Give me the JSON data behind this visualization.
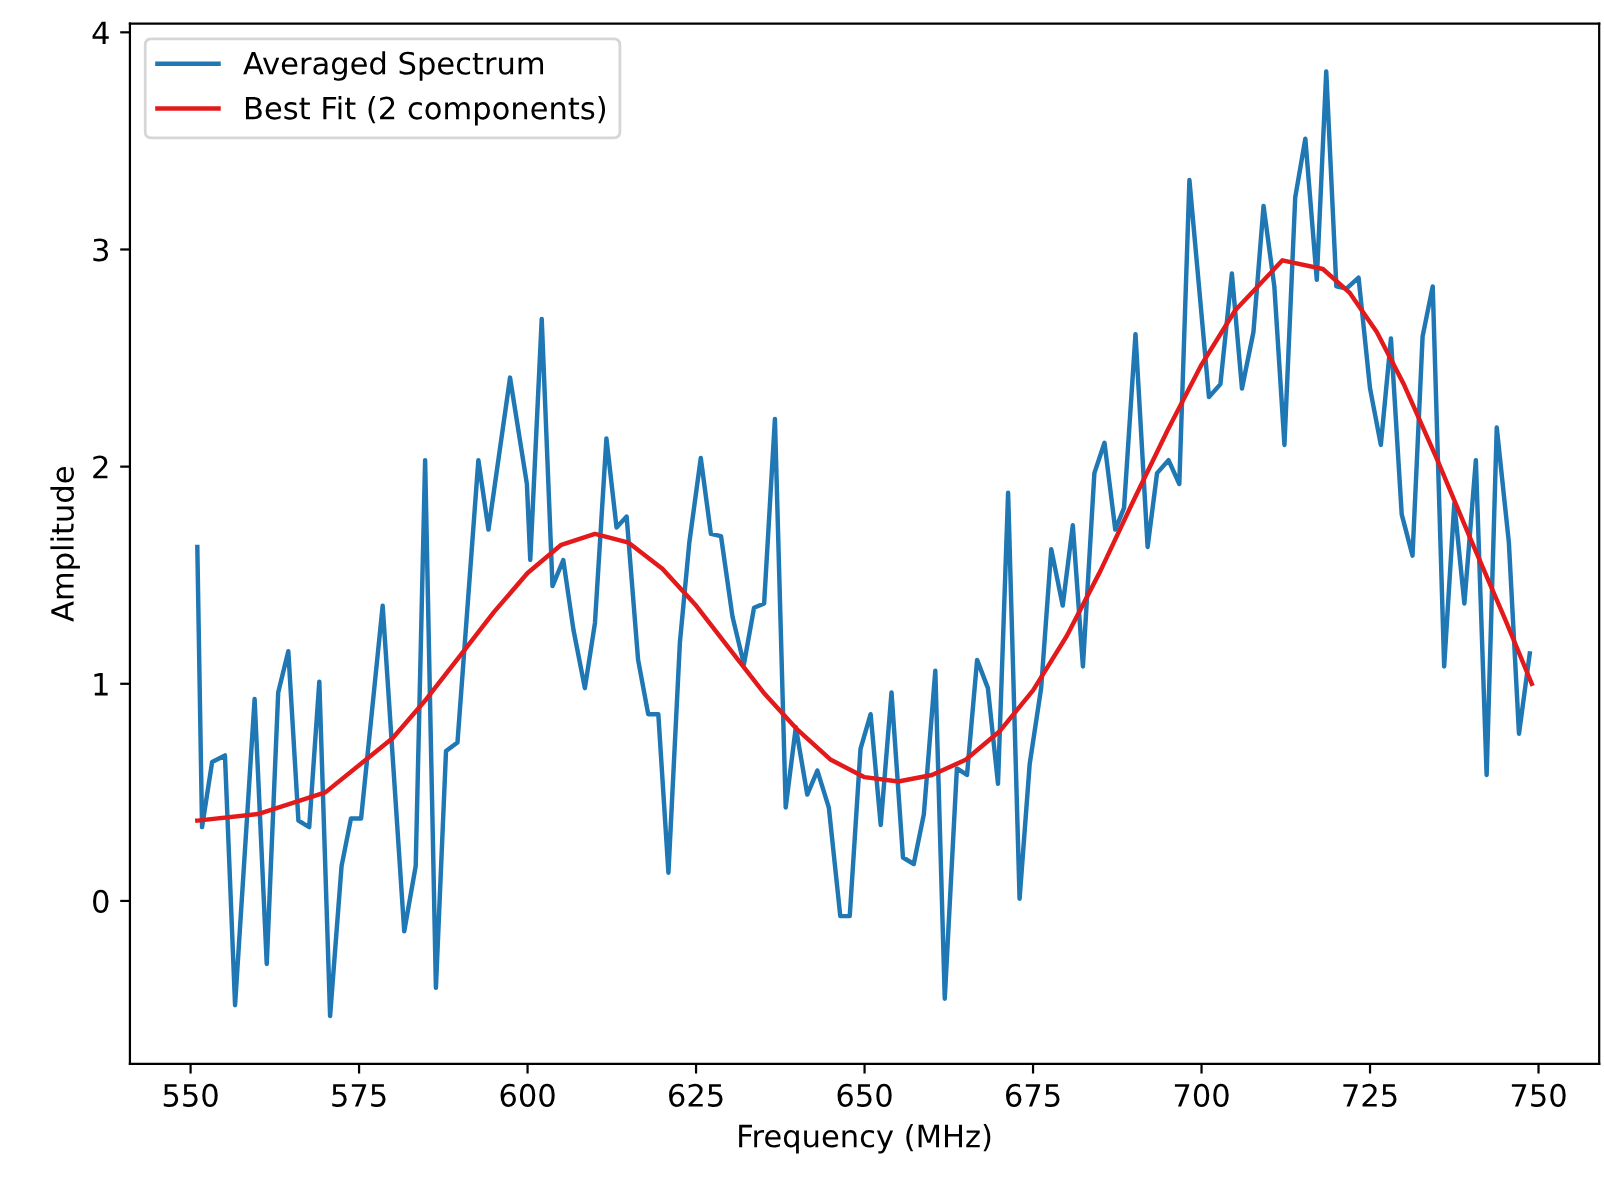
{
  "chart_data": {
    "type": "line",
    "xlabel": "Frequency (MHz)",
    "ylabel": "Amplitude",
    "xlim": [
      541,
      759
    ],
    "ylim": [
      -0.75,
      4.04
    ],
    "xticks": [
      550,
      575,
      600,
      625,
      650,
      675,
      700,
      725,
      750
    ],
    "yticks": [
      0,
      1,
      2,
      3,
      4
    ],
    "grid": false,
    "legend": "top left",
    "marker": "none",
    "line_style": "solid",
    "series": [
      {
        "name": "Averaged Spectrum",
        "color": "#1f77b4",
        "x": [
          551,
          551.7,
          553.2,
          555.1,
          556.6,
          559.5,
          561.3,
          563.0,
          564.5,
          566.0,
          567.6,
          569.1,
          570.7,
          572.4,
          573.8,
          575.3,
          578.5,
          581.7,
          583.4,
          584.8,
          586.4,
          587.9,
          589.6,
          592.7,
          594.2,
          597.4,
          599.9,
          600.4,
          602.1,
          603.7,
          605.3,
          606.8,
          608.5,
          610.0,
          611.7,
          613.2,
          614.7,
          616.4,
          617.9,
          619.4,
          620.9,
          622.6,
          624.0,
          625.7,
          627.2,
          628.7,
          630.4,
          632.1,
          633.6,
          635.1,
          636.7,
          638.3,
          639.8,
          641.5,
          643.0,
          644.7,
          646.4,
          647.8,
          649.4,
          650.9,
          652.4,
          654.0,
          655.7,
          657.3,
          658.8,
          660.5,
          661.9,
          663.7,
          665.2,
          666.7,
          668.3,
          669.8,
          671.3,
          673.0,
          674.5,
          676.2,
          677.7,
          679.4,
          680.9,
          682.4,
          684.1,
          685.6,
          687.2,
          688.5,
          690.2,
          692.0,
          693.4,
          695.1,
          696.7,
          698.2,
          701.1,
          702.8,
          704.5,
          706.0,
          707.7,
          709.2,
          710.8,
          712.3,
          713.9,
          715.4,
          717.1,
          718.5,
          720.0,
          721.5,
          723.3,
          725.0,
          726.6,
          728.1,
          729.7,
          731.3,
          732.8,
          734.3,
          736.0,
          737.5,
          739.0,
          740.7,
          742.3,
          743.8,
          745.6,
          747.1,
          748.7
        ],
        "values": [
          1.63,
          0.34,
          0.64,
          0.67,
          -0.48,
          0.93,
          -0.29,
          0.96,
          1.15,
          0.37,
          0.34,
          1.01,
          -0.53,
          0.16,
          0.38,
          0.38,
          1.36,
          -0.14,
          0.16,
          2.03,
          -0.4,
          0.69,
          0.73,
          2.03,
          1.71,
          2.41,
          1.92,
          1.57,
          2.68,
          1.45,
          1.57,
          1.25,
          0.98,
          1.28,
          2.13,
          1.72,
          1.77,
          1.11,
          0.86,
          0.86,
          0.13,
          1.19,
          1.65,
          2.04,
          1.69,
          1.68,
          1.31,
          1.09,
          1.35,
          1.37,
          2.22,
          0.43,
          0.8,
          0.49,
          0.6,
          0.43,
          -0.07,
          -0.07,
          0.7,
          0.86,
          0.35,
          0.96,
          0.2,
          0.17,
          0.4,
          1.06,
          -0.45,
          0.61,
          0.58,
          1.11,
          0.98,
          0.54,
          1.88,
          0.01,
          0.63,
          0.98,
          1.62,
          1.36,
          1.73,
          1.08,
          1.97,
          2.11,
          1.71,
          1.81,
          2.61,
          1.63,
          1.97,
          2.03,
          1.92,
          3.32,
          2.32,
          2.38,
          2.89,
          2.36,
          2.62,
          3.2,
          2.83,
          2.1,
          3.24,
          3.51,
          2.86,
          3.82,
          2.83,
          2.82,
          2.87,
          2.36,
          2.1,
          2.59,
          1.78,
          1.59,
          2.6,
          2.83,
          1.08,
          1.83,
          1.37,
          2.03,
          0.58,
          2.18,
          1.65,
          0.77,
          1.14
        ]
      },
      {
        "name": "Best Fit (2 components)",
        "color": "#e31a1c",
        "x": [
          551,
          560,
          570,
          580,
          585,
          590,
          595,
          600,
          605,
          610,
          615,
          620,
          625,
          630,
          635,
          640,
          645,
          650,
          655,
          660,
          665,
          670,
          675,
          680,
          685,
          690,
          695,
          700,
          705,
          712,
          718,
          722,
          726,
          730,
          735,
          740,
          745,
          749
        ],
        "values": [
          0.37,
          0.4,
          0.5,
          0.75,
          0.93,
          1.13,
          1.33,
          1.51,
          1.64,
          1.69,
          1.65,
          1.53,
          1.36,
          1.16,
          0.96,
          0.79,
          0.65,
          0.57,
          0.55,
          0.58,
          0.65,
          0.78,
          0.97,
          1.22,
          1.52,
          1.85,
          2.17,
          2.47,
          2.72,
          2.95,
          2.91,
          2.8,
          2.62,
          2.38,
          2.03,
          1.66,
          1.3,
          1.0
        ]
      }
    ]
  }
}
